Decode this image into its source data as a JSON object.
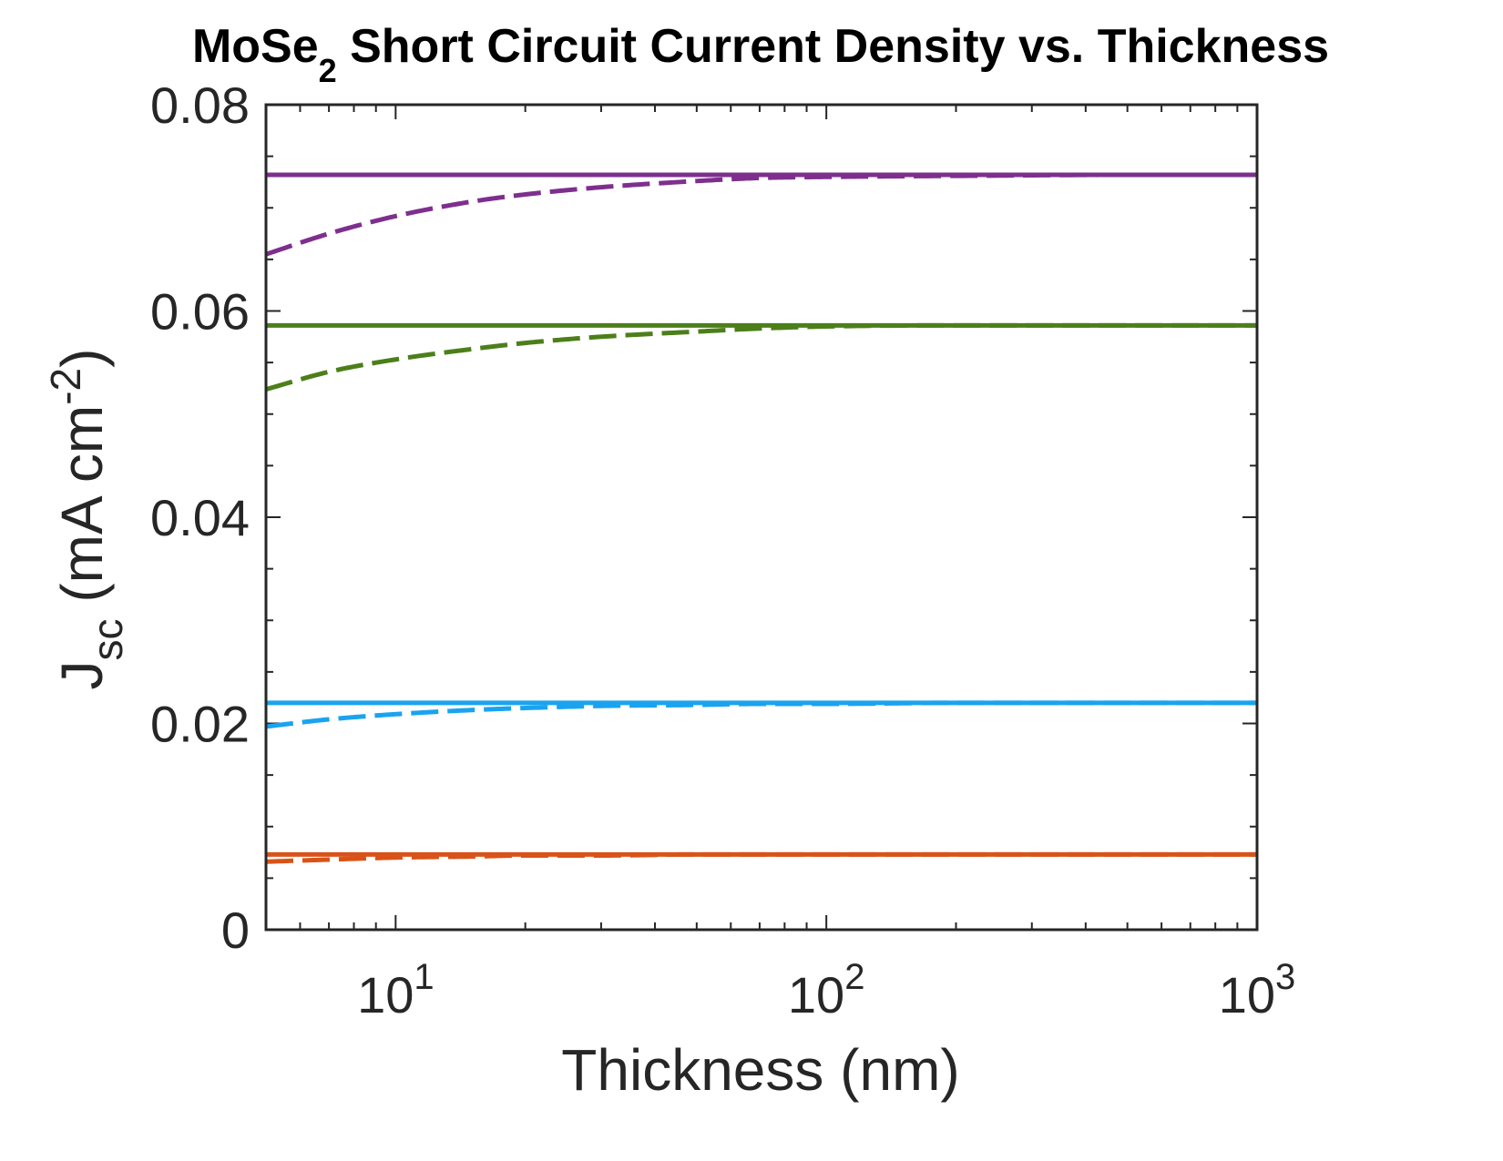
{
  "chart_data": {
    "type": "line",
    "title": {
      "main": "MoSe",
      "subscript": "2",
      "rest": " Short Circuit Current Density vs. Thickness"
    },
    "xlabel": "Thickness (nm)",
    "ylabel": {
      "main": "J",
      "subscript": "sc",
      "units_main": " (mA cm",
      "units_superscript": "-2",
      "units_close": ")"
    },
    "x_scale": "log",
    "xlim": [
      5,
      1000
    ],
    "ylim": [
      0,
      0.08
    ],
    "x_ticks": [
      {
        "value": 10,
        "base": "10",
        "exponent": "1"
      },
      {
        "value": 100,
        "base": "10",
        "exponent": "2"
      },
      {
        "value": 1000,
        "base": "10",
        "exponent": "3"
      }
    ],
    "y_ticks": [
      {
        "value": 0,
        "label": "0"
      },
      {
        "value": 0.02,
        "label": "0.02"
      },
      {
        "value": 0.04,
        "label": "0.04"
      },
      {
        "value": 0.06,
        "label": "0.06"
      },
      {
        "value": 0.08,
        "label": "0.08"
      }
    ],
    "grid": false,
    "box": true,
    "series": [
      {
        "color": "#7E2F8E",
        "style": "solid",
        "x": [
          5,
          1000
        ],
        "y": [
          0.0732,
          0.0732
        ]
      },
      {
        "color": "#7E2F8E",
        "style": "dashed",
        "x": [
          5,
          7,
          10,
          15,
          20,
          30,
          50,
          70,
          100,
          200,
          500,
          1000
        ],
        "y": [
          0.0655,
          0.0675,
          0.0692,
          0.0706,
          0.0713,
          0.072,
          0.0726,
          0.0729,
          0.073,
          0.0731,
          0.0732,
          0.0732
        ]
      },
      {
        "color": "#4C7F1A",
        "style": "solid",
        "x": [
          5,
          1000
        ],
        "y": [
          0.0586,
          0.0586
        ]
      },
      {
        "color": "#4C7F1A",
        "style": "dashed",
        "x": [
          5,
          7,
          10,
          15,
          20,
          30,
          50,
          70,
          100,
          200,
          500,
          1000
        ],
        "y": [
          0.0524,
          0.0541,
          0.0553,
          0.0563,
          0.0569,
          0.0575,
          0.058,
          0.0583,
          0.0585,
          0.0586,
          0.0586,
          0.0586
        ]
      },
      {
        "color": "#1AA3F0",
        "style": "solid",
        "x": [
          5,
          1000
        ],
        "y": [
          0.022,
          0.022
        ]
      },
      {
        "color": "#1AA3F0",
        "style": "dashed",
        "x": [
          5,
          7,
          10,
          15,
          20,
          30,
          50,
          70,
          100,
          200,
          500,
          1000
        ],
        "y": [
          0.0197,
          0.0204,
          0.0209,
          0.0213,
          0.0215,
          0.0217,
          0.0218,
          0.0219,
          0.0219,
          0.022,
          0.022,
          0.022
        ]
      },
      {
        "color": "#D95319",
        "style": "solid",
        "x": [
          5,
          1000
        ],
        "y": [
          0.0073,
          0.0073
        ]
      },
      {
        "color": "#D95319",
        "style": "dashed",
        "x": [
          5,
          7,
          10,
          15,
          20,
          30,
          50,
          100,
          200,
          500,
          1000
        ],
        "y": [
          0.0066,
          0.0068,
          0.007,
          0.0071,
          0.0072,
          0.0072,
          0.0073,
          0.0073,
          0.0073,
          0.0073,
          0.0073
        ]
      }
    ]
  }
}
